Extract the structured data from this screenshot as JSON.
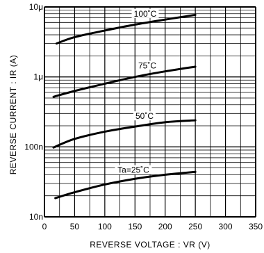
{
  "chart_data": {
    "type": "line",
    "title": "",
    "xlabel": "REVERSE  VOLTAGE : VR (V)",
    "ylabel": "REVERSE  CURRENT : IR (A)",
    "xlim": [
      0,
      350
    ],
    "ylim": [
      1e-08,
      1e-05
    ],
    "yscale": "log",
    "grid": true,
    "x_ticks": [
      0,
      50,
      100,
      150,
      200,
      250,
      300,
      350
    ],
    "x_tick_labels": [
      "0",
      "50",
      "100",
      "150",
      "200",
      "250",
      "300",
      "350"
    ],
    "y_ticks": [
      1e-08,
      1e-07,
      1e-06,
      1e-05
    ],
    "y_tick_labels": [
      "10n",
      "100n",
      "1μ",
      "10μ"
    ],
    "series": [
      {
        "name": "100˚C",
        "x": [
          20,
          50,
          100,
          150,
          200,
          250
        ],
        "y": [
          3e-06,
          3.7e-06,
          4.6e-06,
          5.6e-06,
          6.6e-06,
          7.7e-06
        ]
      },
      {
        "name": "75˚C",
        "x": [
          15,
          50,
          100,
          150,
          200,
          250
        ],
        "y": [
          5.2e-07,
          6.3e-07,
          8e-07,
          1e-06,
          1.2e-06,
          1.4e-06
        ]
      },
      {
        "name": "50˚C",
        "x": [
          15,
          50,
          100,
          150,
          200,
          250
        ],
        "y": [
          9.8e-08,
          1.3e-07,
          1.65e-07,
          1.95e-07,
          2.25e-07,
          2.4e-07
        ]
      },
      {
        "name": "Ta=25˚C",
        "x": [
          18,
          50,
          100,
          150,
          200,
          250
        ],
        "y": [
          1.85e-08,
          2.25e-08,
          2.9e-08,
          3.5e-08,
          4e-08,
          4.4e-08
        ]
      }
    ]
  }
}
